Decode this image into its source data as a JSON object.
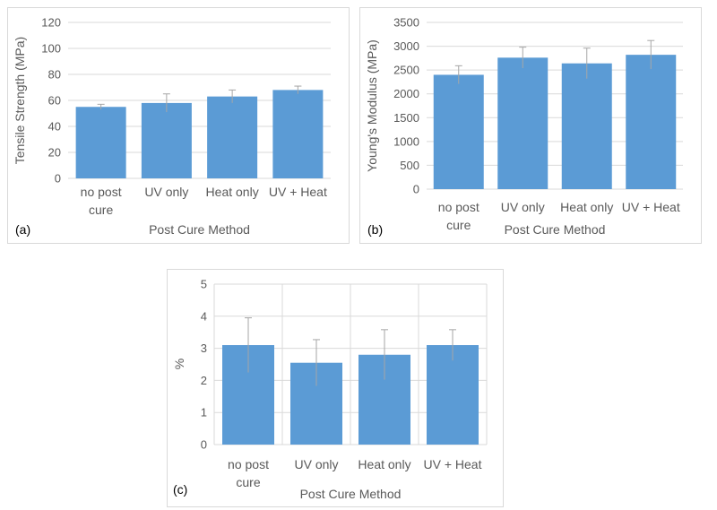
{
  "chart_data": [
    {
      "type": "bar",
      "panel_label": "(a)",
      "categories": [
        [
          "no post",
          "cure"
        ],
        [
          "UV only"
        ],
        [
          "Heat only"
        ],
        [
          "UV + Heat"
        ]
      ],
      "values": [
        55,
        58,
        63,
        68
      ],
      "errors": [
        2,
        7,
        5,
        3
      ],
      "xlabel": "Post Cure Method",
      "ylabel": "Tensile Strength (MPa)",
      "ylim": [
        0,
        120
      ],
      "yticks": [
        0,
        20,
        40,
        60,
        80,
        100,
        120
      ],
      "grid": "horizontal",
      "color": "#5b9bd5"
    },
    {
      "type": "bar",
      "panel_label": "(b)",
      "categories": [
        [
          "no post",
          "cure"
        ],
        [
          "UV only"
        ],
        [
          "Heat only"
        ],
        [
          "UV + Heat"
        ]
      ],
      "values": [
        2400,
        2760,
        2640,
        2820
      ],
      "errors": [
        190,
        220,
        320,
        300
      ],
      "xlabel": "Post Cure Method",
      "ylabel": "Young's Modulus (MPa)",
      "ylim": [
        0,
        3500
      ],
      "yticks": [
        0,
        500,
        1000,
        1500,
        2000,
        2500,
        3000,
        3500
      ],
      "grid": "horizontal",
      "color": "#5b9bd5"
    },
    {
      "type": "bar",
      "panel_label": "(c)",
      "categories": [
        [
          "no post",
          "cure"
        ],
        [
          "UV only"
        ],
        [
          "Heat only"
        ],
        [
          "UV + Heat"
        ]
      ],
      "values": [
        3.1,
        2.55,
        2.8,
        3.1
      ],
      "errors": [
        0.85,
        0.72,
        0.78,
        0.48
      ],
      "xlabel": "Post Cure Method",
      "ylabel": "%",
      "ylim": [
        0,
        5
      ],
      "yticks": [
        0,
        1,
        2,
        3,
        4,
        5
      ],
      "grid": "both",
      "color": "#5b9bd5"
    }
  ]
}
